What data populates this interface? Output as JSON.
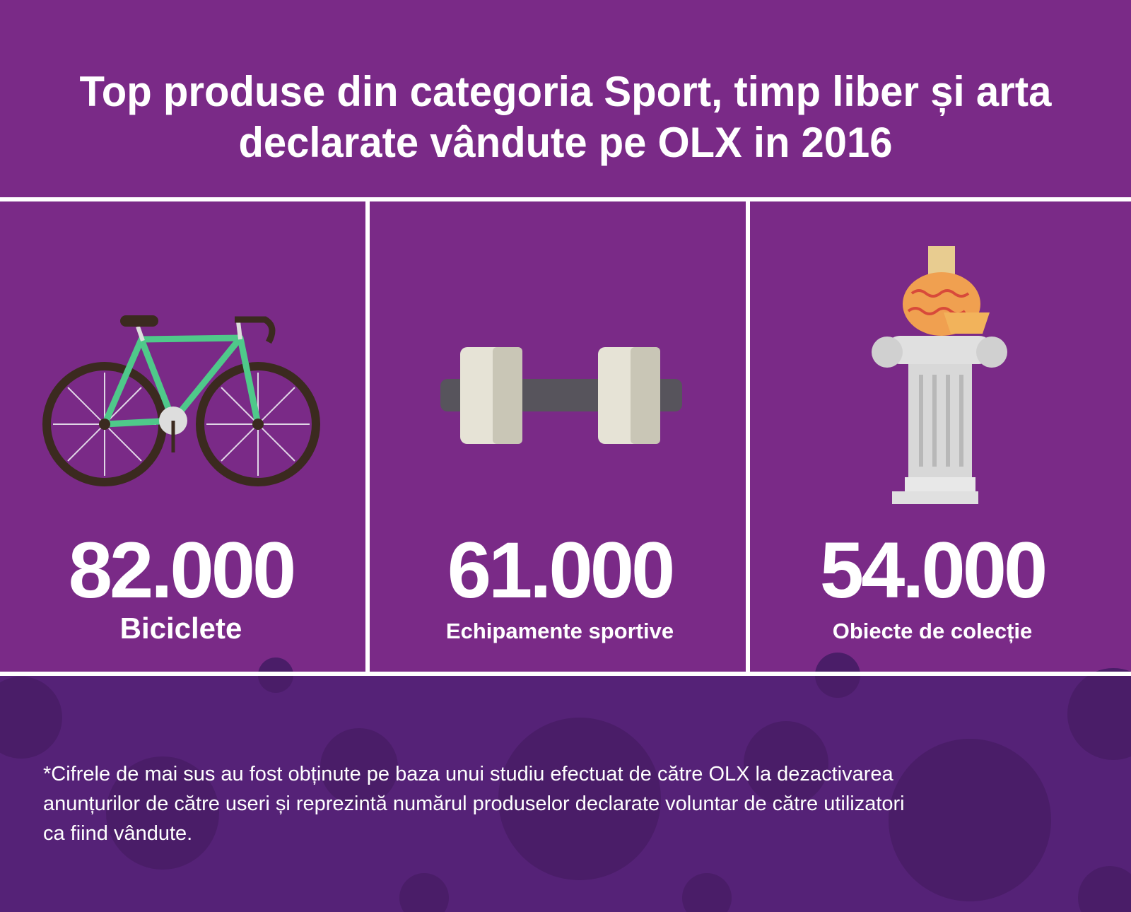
{
  "header": {
    "title": [
      "Top produse din categoria Sport, timp liber și arta",
      "declarate vândute pe OLX in 2016"
    ]
  },
  "items": [
    {
      "value": "82.000",
      "label": "Biciclete"
    },
    {
      "value": "61.000",
      "label": "Echipamente sportive"
    },
    {
      "value": "54.000",
      "label": "Obiecte de colecție"
    }
  ],
  "footnote": [
    "*Cifrele de mai sus au fost obținute pe baza unui studiu efectuat de către OLX la dezactivarea",
    "anunțurilor de către useri și reprezintă numărul produselor declarate voluntar de către utilizatori",
    "ca fiind vândute."
  ]
}
